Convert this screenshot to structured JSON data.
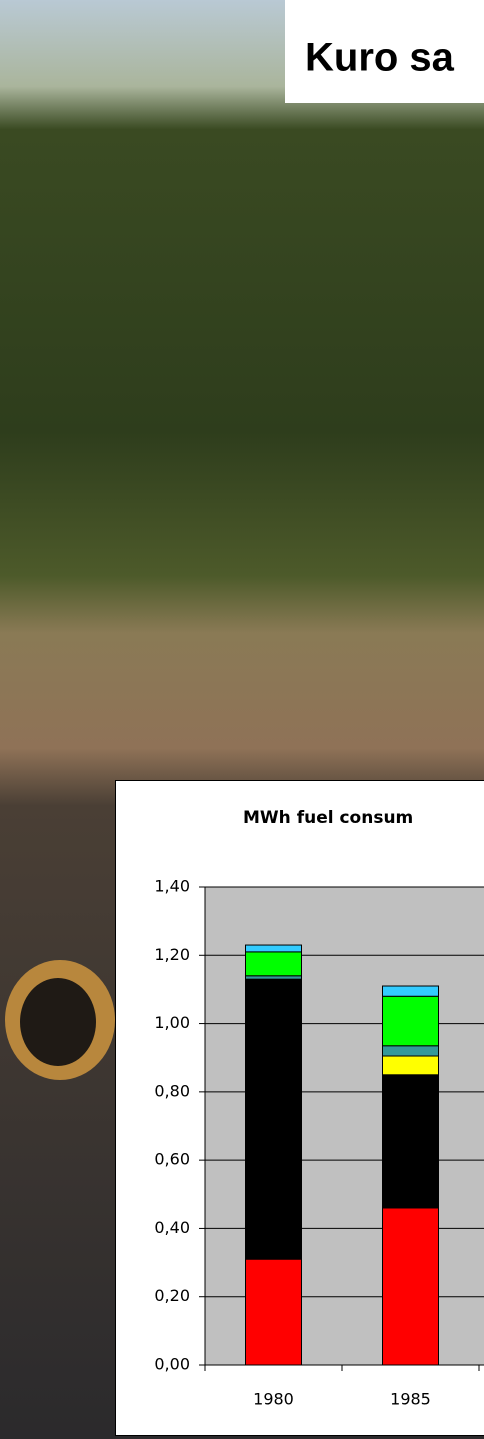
{
  "slide_title": "Kuro sa",
  "chart_data": {
    "type": "stacked_bar",
    "title": "MWh fuel consum",
    "categories": [
      "1980",
      "1985"
    ],
    "series": [
      {
        "color": "#ff0000",
        "values": [
          0.31,
          0.46
        ]
      },
      {
        "color": "#000000",
        "values": [
          0.82,
          0.39
        ]
      },
      {
        "color": "#ffff00",
        "values": [
          0,
          0.055
        ]
      },
      {
        "color": "#339999",
        "values": [
          0.01,
          0.03
        ]
      },
      {
        "color": "#00ff00",
        "values": [
          0.07,
          0.145
        ]
      },
      {
        "color": "#33ccff",
        "values": [
          0.02,
          0.03
        ]
      }
    ],
    "ylim": [
      0,
      1.4
    ],
    "yticks": [
      {
        "value": 0,
        "label": "0,00"
      },
      {
        "value": 0.2,
        "label": "0,20"
      },
      {
        "value": 0.4,
        "label": "0,40"
      },
      {
        "value": 0.6,
        "label": "0,60"
      },
      {
        "value": 0.8,
        "label": "0,80"
      },
      {
        "value": 1.0,
        "label": "1,00"
      },
      {
        "value": 1.2,
        "label": "1,20"
      },
      {
        "value": 1.4,
        "label": "1,40"
      }
    ],
    "grid": true
  }
}
